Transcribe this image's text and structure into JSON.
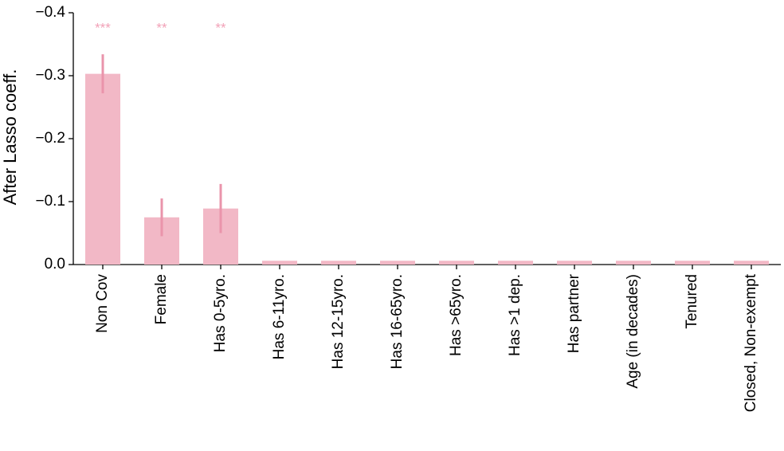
{
  "chart_data": {
    "type": "bar",
    "y_label": "After Lasso coeff.",
    "categories": [
      "Non Cov",
      "Female",
      "Has 0-5yro.",
      "Has 6-11yro.",
      "Has 12-15yro.",
      "Has 16-65yro.",
      "Has >65yro.",
      "Has >1 dep.",
      "Has partner",
      "Age (in decades)",
      "Tenured",
      "Closed, Non-exempt"
    ],
    "values": [
      -0.303,
      -0.075,
      -0.089,
      -0.006,
      -0.006,
      -0.006,
      -0.006,
      -0.006,
      -0.006,
      -0.006,
      -0.006,
      -0.006
    ],
    "errors": [
      0.031,
      0.03,
      0.039,
      null,
      null,
      null,
      null,
      null,
      null,
      null,
      null,
      null
    ],
    "annotations": [
      "***",
      "**",
      "**",
      null,
      null,
      null,
      null,
      null,
      null,
      null,
      null,
      null
    ],
    "color": "#f2b8c6",
    "error_color": "#ea94ab",
    "annotation_color": "#f2a2b8",
    "ylim": [
      0,
      -0.4
    ],
    "yticks": [
      {
        "value": 0,
        "label": "0.0"
      },
      {
        "value": -0.1,
        "label": "−0.1"
      },
      {
        "value": -0.2,
        "label": "−0.2"
      },
      {
        "value": -0.3,
        "label": "−0.3"
      },
      {
        "value": -0.4,
        "label": "−0.4"
      }
    ],
    "grid": false
  }
}
